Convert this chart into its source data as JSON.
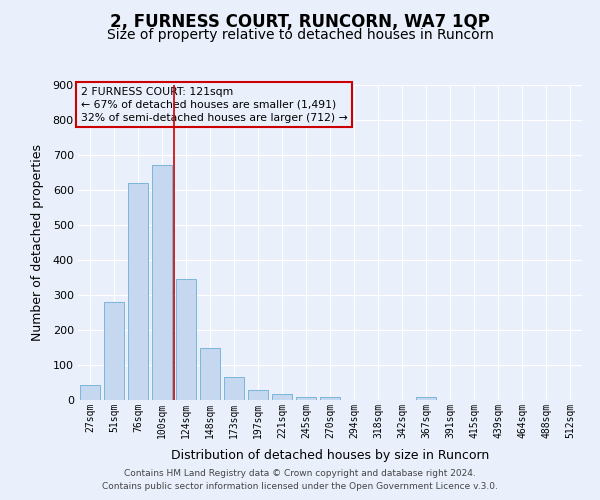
{
  "title": "2, FURNESS COURT, RUNCORN, WA7 1QP",
  "subtitle": "Size of property relative to detached houses in Runcorn",
  "xlabel": "Distribution of detached houses by size in Runcorn",
  "ylabel": "Number of detached properties",
  "bar_labels": [
    "27sqm",
    "51sqm",
    "76sqm",
    "100sqm",
    "124sqm",
    "148sqm",
    "173sqm",
    "197sqm",
    "221sqm",
    "245sqm",
    "270sqm",
    "294sqm",
    "318sqm",
    "342sqm",
    "367sqm",
    "391sqm",
    "415sqm",
    "439sqm",
    "464sqm",
    "488sqm",
    "512sqm"
  ],
  "bar_values": [
    42,
    280,
    620,
    670,
    345,
    150,
    65,
    30,
    18,
    10,
    10,
    0,
    0,
    0,
    8,
    0,
    0,
    0,
    0,
    0,
    0
  ],
  "bar_color": "#c5d8f0",
  "bar_edge_color": "#6baed6",
  "vline_color": "#cc0000",
  "vline_x_index": 4,
  "annotation_box_text": "2 FURNESS COURT: 121sqm\n← 67% of detached houses are smaller (1,491)\n32% of semi-detached houses are larger (712) →",
  "annotation_box_color": "#cc0000",
  "ylim": [
    0,
    900
  ],
  "yticks": [
    0,
    100,
    200,
    300,
    400,
    500,
    600,
    700,
    800,
    900
  ],
  "footer1": "Contains HM Land Registry data © Crown copyright and database right 2024.",
  "footer2": "Contains public sector information licensed under the Open Government Licence v.3.0.",
  "bg_color": "#eaf0fb",
  "grid_color": "#ffffff",
  "title_fontsize": 12,
  "subtitle_fontsize": 10,
  "xlabel_fontsize": 9,
  "ylabel_fontsize": 9
}
